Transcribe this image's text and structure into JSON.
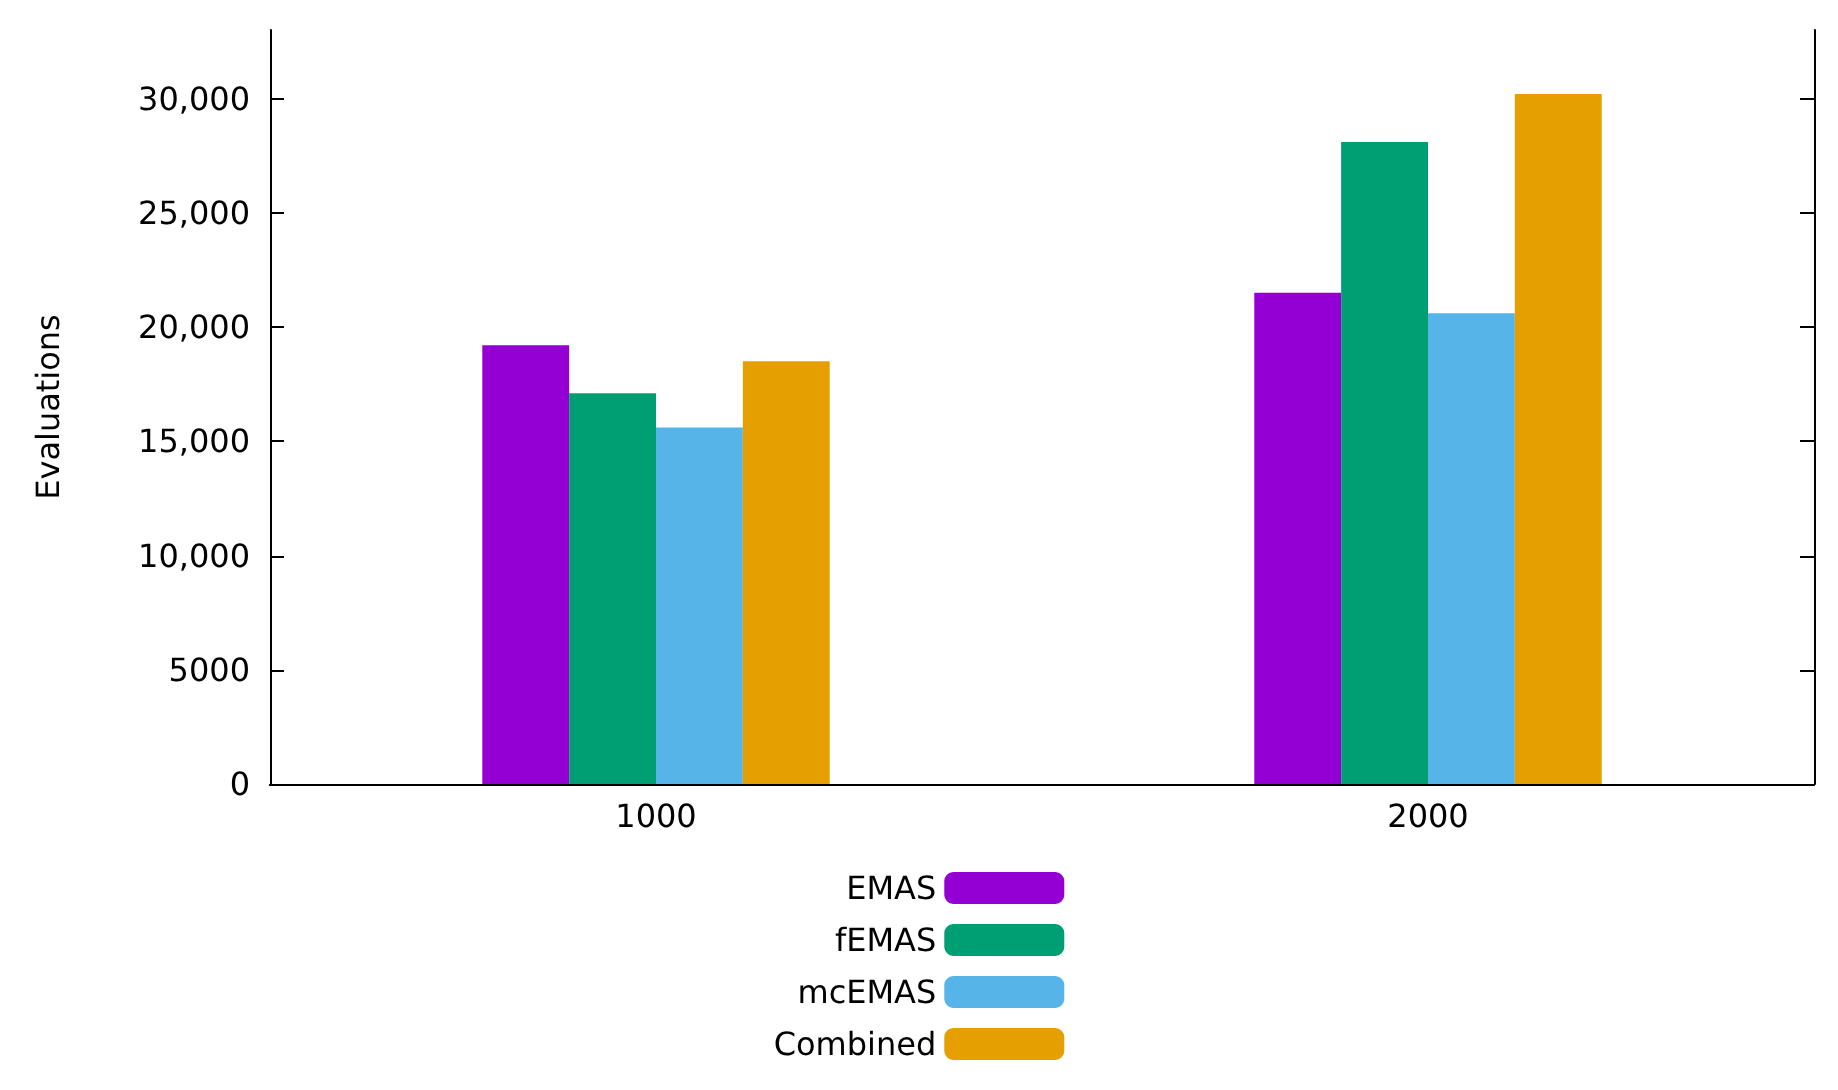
{
  "chart_data": {
    "type": "bar",
    "ylabel": "Evaluations",
    "categories": [
      "1000",
      "2000"
    ],
    "series": [
      {
        "name": "EMAS",
        "color": "#9400d3",
        "values": [
          19200,
          21500
        ]
      },
      {
        "name": "fEMAS",
        "color": "#009e73",
        "values": [
          17100,
          28100
        ]
      },
      {
        "name": "mcEMAS",
        "color": "#56b4e9",
        "values": [
          15600,
          20600
        ]
      },
      {
        "name": "Combined",
        "color": "#e69f00",
        "values": [
          18500,
          30200
        ]
      }
    ],
    "ylim": [
      0,
      33000
    ],
    "yticks": [
      0,
      5000,
      {
        "value": 10000,
        "label": "10,000"
      },
      {
        "value": 15000,
        "label": "15,000"
      },
      {
        "value": 20000,
        "label": "20,000"
      },
      {
        "value": 25000,
        "label": "25,000"
      },
      {
        "value": 30000,
        "label": "30,000"
      }
    ],
    "grid": false,
    "legend": "bottom"
  }
}
